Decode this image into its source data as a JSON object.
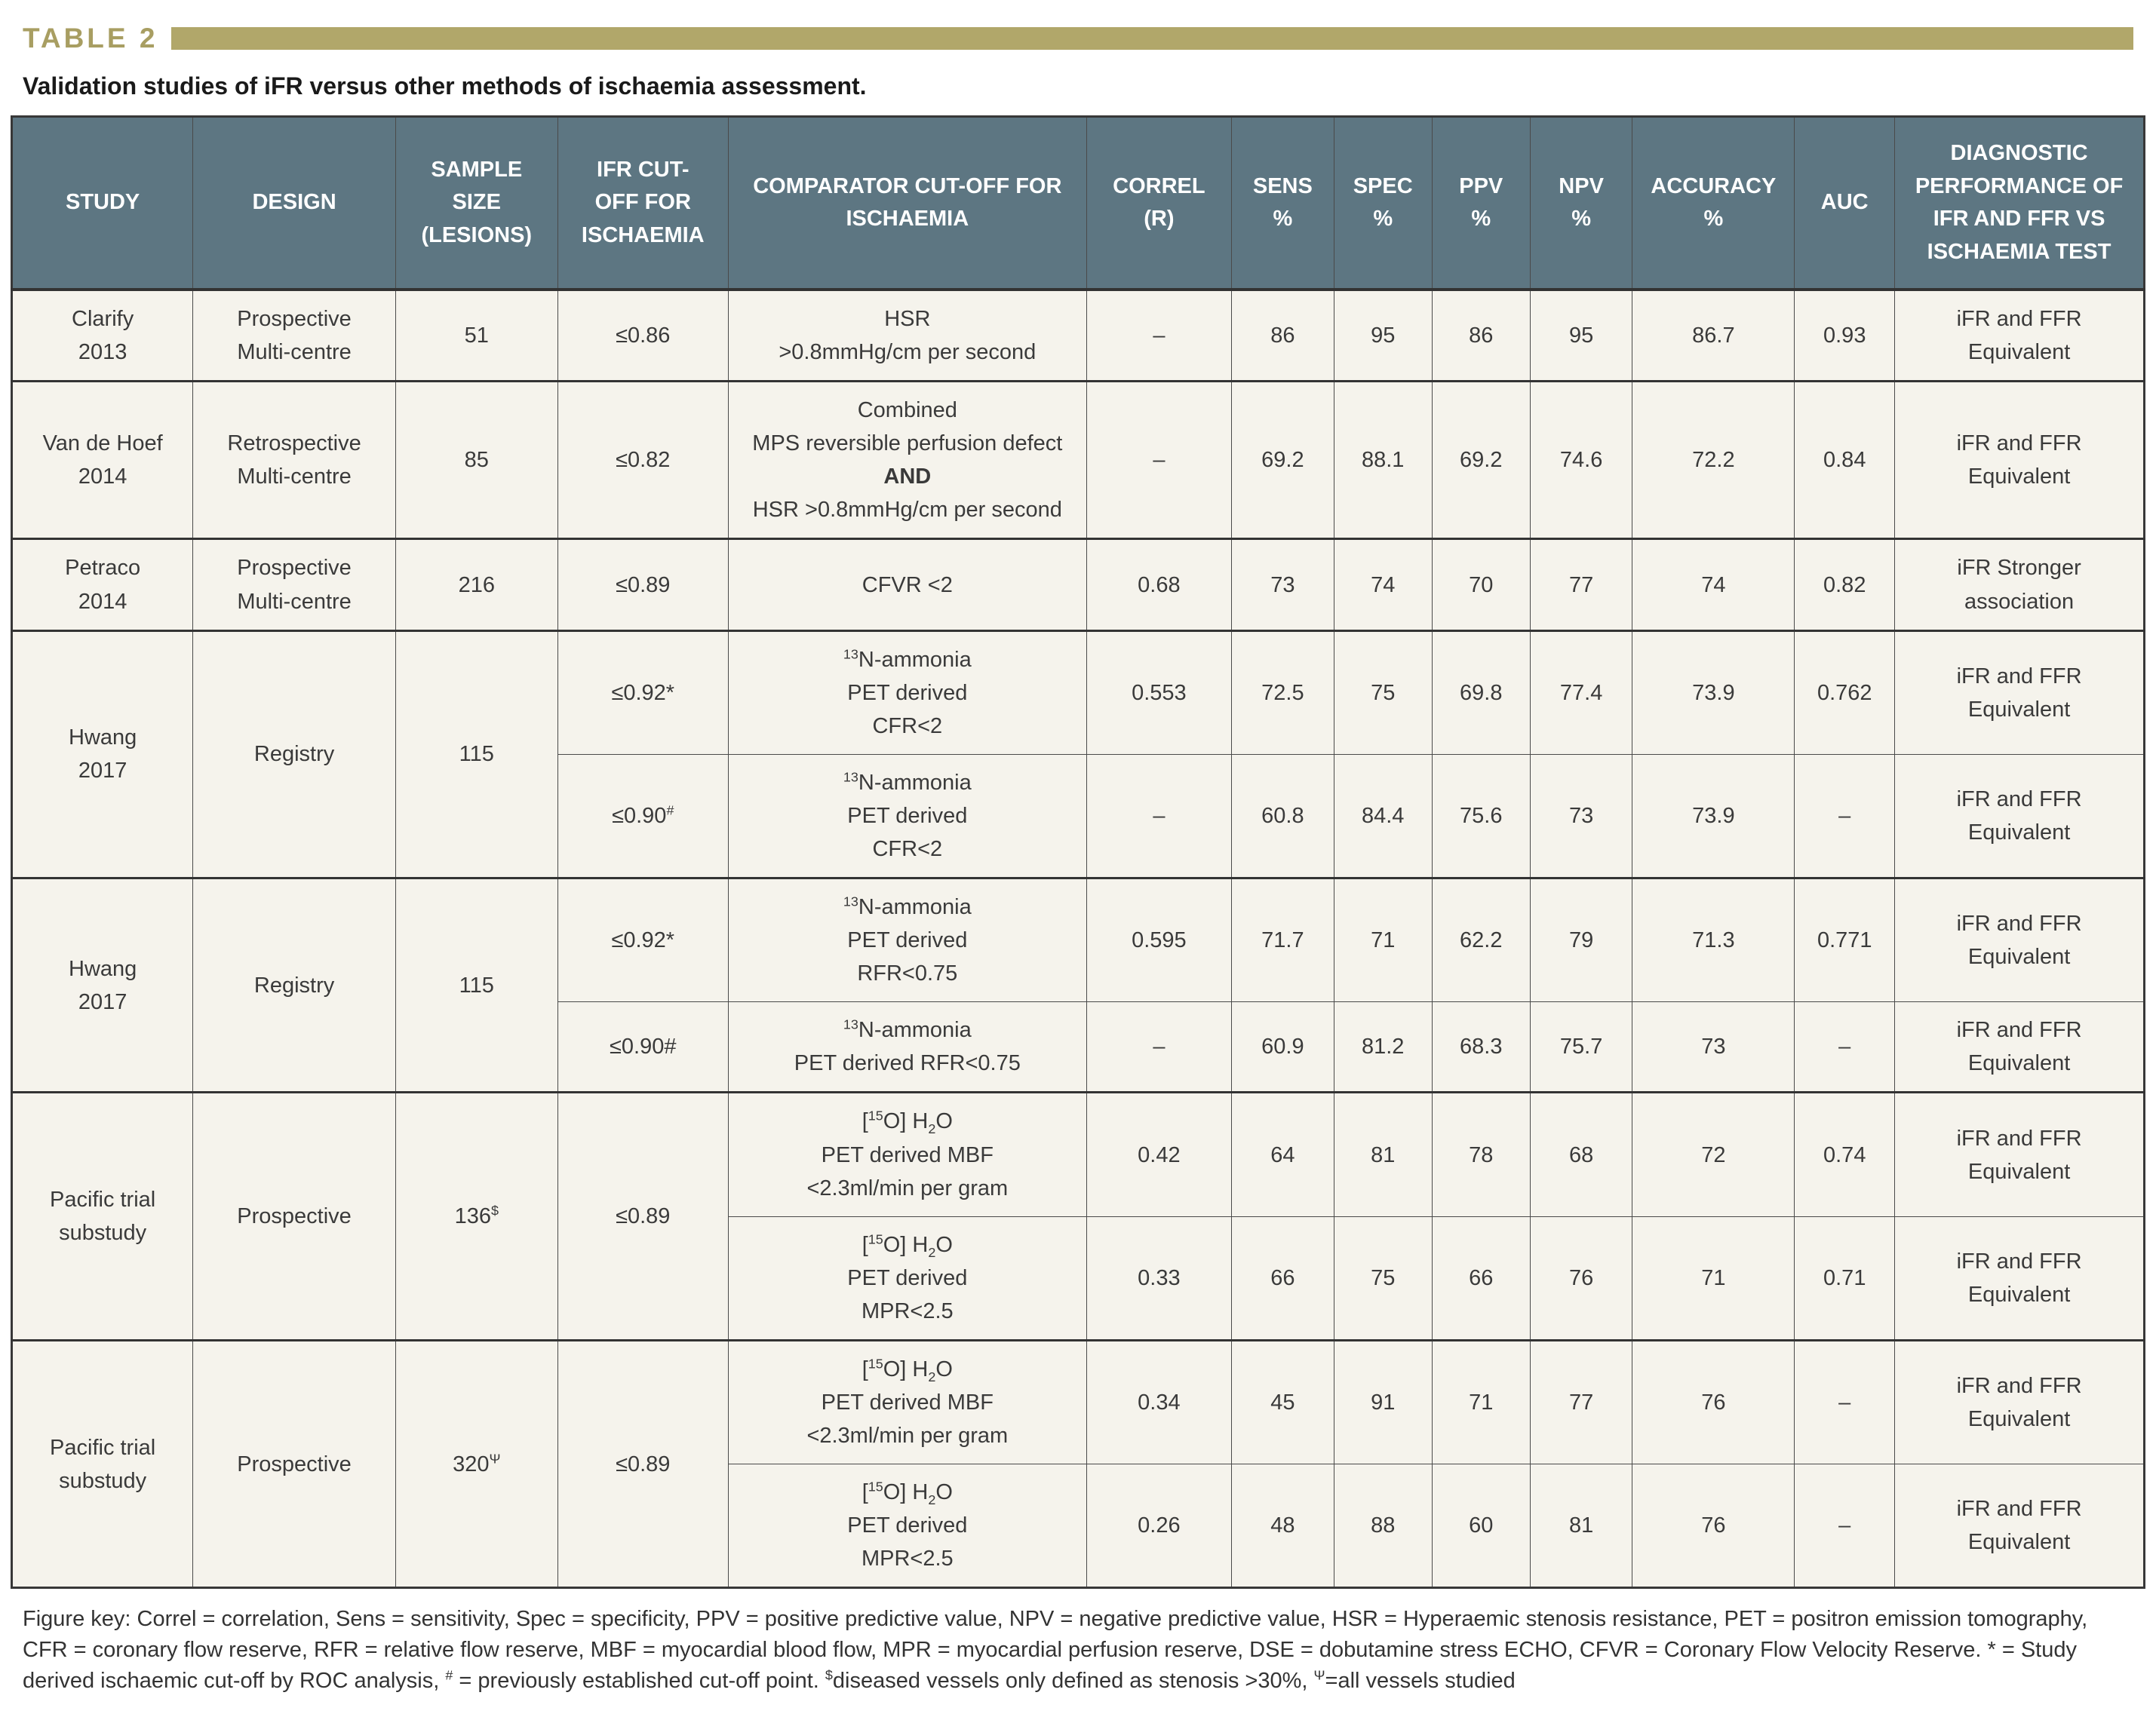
{
  "table_label": "TABLE 2",
  "title": "Validation studies of iFR versus other methods of ischaemia assessment.",
  "colors": {
    "gold_accent": "#b1a76a",
    "header_bg": "#5d7682",
    "row_bg": "#f5f3ec",
    "border": "#4a4a4a"
  },
  "table": {
    "headers": [
      [
        "STUDY"
      ],
      [
        "DESIGN"
      ],
      [
        "SAMPLE",
        "SIZE",
        "(LESIONS)"
      ],
      [
        "IFR CUT-",
        "OFF FOR",
        "ISCHAEMIA"
      ],
      [
        "COMPARATOR CUT-OFF FOR",
        "ISCHAEMIA"
      ],
      [
        "CORREL",
        "(R)"
      ],
      [
        "SENS",
        "%"
      ],
      [
        "SPEC",
        "%"
      ],
      [
        "PPV",
        "%"
      ],
      [
        "NPV",
        "%"
      ],
      [
        "ACCURACY",
        "%"
      ],
      [
        "AUC"
      ],
      [
        "DIAGNOSTIC",
        "PERFORMANCE OF",
        "IFR AND FFR VS",
        "ISCHAEMIA TEST"
      ]
    ],
    "bands": [
      {
        "rows": [
          [
            {
              "lines": [
                "Clarify",
                "2013"
              ]
            },
            {
              "lines": [
                "Prospective",
                "Multi-centre"
              ]
            },
            {
              "lines": [
                "51"
              ]
            },
            {
              "lines": [
                "≤0.86"
              ]
            },
            {
              "lines": [
                "HSR",
                ">0.8mmHg/cm per second"
              ]
            },
            {
              "lines": [
                "–"
              ]
            },
            {
              "lines": [
                "86"
              ]
            },
            {
              "lines": [
                "95"
              ]
            },
            {
              "lines": [
                "86"
              ]
            },
            {
              "lines": [
                "95"
              ]
            },
            {
              "lines": [
                "86.7"
              ]
            },
            {
              "lines": [
                "0.93"
              ]
            },
            {
              "lines": [
                "iFR and FFR",
                "Equivalent"
              ]
            }
          ]
        ]
      },
      {
        "rows": [
          [
            {
              "lines": [
                "Van de Hoef",
                "2014"
              ]
            },
            {
              "lines": [
                "Retrospective",
                "Multi-centre"
              ]
            },
            {
              "lines": [
                "85"
              ]
            },
            {
              "lines": [
                "≤0.82"
              ]
            },
            {
              "lines": [
                "Combined",
                "MPS reversible perfusion defect",
                "**AND**",
                "HSR >0.8mmHg/cm per second"
              ]
            },
            {
              "lines": [
                "–"
              ]
            },
            {
              "lines": [
                "69.2"
              ]
            },
            {
              "lines": [
                "88.1"
              ]
            },
            {
              "lines": [
                "69.2"
              ]
            },
            {
              "lines": [
                "74.6"
              ]
            },
            {
              "lines": [
                "72.2"
              ]
            },
            {
              "lines": [
                "0.84"
              ]
            },
            {
              "lines": [
                "iFR and FFR",
                "Equivalent"
              ]
            }
          ]
        ]
      },
      {
        "rows": [
          [
            {
              "lines": [
                "Petraco",
                "2014"
              ]
            },
            {
              "lines": [
                "Prospective",
                "Multi-centre"
              ]
            },
            {
              "lines": [
                "216"
              ]
            },
            {
              "lines": [
                "≤0.89"
              ]
            },
            {
              "lines": [
                "CFVR <2"
              ]
            },
            {
              "lines": [
                "0.68"
              ]
            },
            {
              "lines": [
                "73"
              ]
            },
            {
              "lines": [
                "74"
              ]
            },
            {
              "lines": [
                "70"
              ]
            },
            {
              "lines": [
                "77"
              ]
            },
            {
              "lines": [
                "74"
              ]
            },
            {
              "lines": [
                "0.82"
              ]
            },
            {
              "lines": [
                "iFR Stronger",
                "association"
              ]
            }
          ]
        ]
      },
      {
        "rows": [
          [
            {
              "lines": [
                "Hwang",
                "2017"
              ],
              "span": 2
            },
            {
              "lines": [
                "Registry"
              ],
              "span": 2
            },
            {
              "lines": [
                "115"
              ],
              "span": 2
            },
            {
              "lines": [
                "≤0.92*"
              ]
            },
            {
              "lines": [
                "^{13}N-ammonia",
                "PET derived",
                "CFR<2"
              ]
            },
            {
              "lines": [
                "0.553"
              ]
            },
            {
              "lines": [
                "72.5"
              ]
            },
            {
              "lines": [
                "75"
              ]
            },
            {
              "lines": [
                "69.8"
              ]
            },
            {
              "lines": [
                "77.4"
              ]
            },
            {
              "lines": [
                "73.9"
              ]
            },
            {
              "lines": [
                "0.762"
              ]
            },
            {
              "lines": [
                "iFR and FFR",
                "Equivalent"
              ]
            }
          ],
          [
            {
              "lines": [
                "≤0.90^{#}"
              ]
            },
            {
              "lines": [
                "^{13}N-ammonia",
                "PET derived",
                "CFR<2"
              ]
            },
            {
              "lines": [
                "–"
              ]
            },
            {
              "lines": [
                "60.8"
              ]
            },
            {
              "lines": [
                "84.4"
              ]
            },
            {
              "lines": [
                "75.6"
              ]
            },
            {
              "lines": [
                "73"
              ]
            },
            {
              "lines": [
                "73.9"
              ]
            },
            {
              "lines": [
                "–"
              ]
            },
            {
              "lines": [
                "iFR and FFR",
                "Equivalent"
              ]
            }
          ]
        ]
      },
      {
        "rows": [
          [
            {
              "lines": [
                "Hwang",
                "2017"
              ],
              "span": 2
            },
            {
              "lines": [
                "Registry"
              ],
              "span": 2
            },
            {
              "lines": [
                "115"
              ],
              "span": 2
            },
            {
              "lines": [
                "≤0.92*"
              ]
            },
            {
              "lines": [
                "^{13}N-ammonia",
                "PET derived",
                "RFR<0.75"
              ]
            },
            {
              "lines": [
                "0.595"
              ]
            },
            {
              "lines": [
                "71.7"
              ]
            },
            {
              "lines": [
                "71"
              ]
            },
            {
              "lines": [
                "62.2"
              ]
            },
            {
              "lines": [
                "79"
              ]
            },
            {
              "lines": [
                "71.3"
              ]
            },
            {
              "lines": [
                "0.771"
              ]
            },
            {
              "lines": [
                "iFR and FFR",
                "Equivalent"
              ]
            }
          ],
          [
            {
              "lines": [
                "≤0.90#"
              ]
            },
            {
              "lines": [
                "^{13}N-ammonia",
                "PET derived RFR<0.75"
              ]
            },
            {
              "lines": [
                "–"
              ]
            },
            {
              "lines": [
                "60.9"
              ]
            },
            {
              "lines": [
                "81.2"
              ]
            },
            {
              "lines": [
                "68.3"
              ]
            },
            {
              "lines": [
                "75.7"
              ]
            },
            {
              "lines": [
                "73"
              ]
            },
            {
              "lines": [
                "–"
              ]
            },
            {
              "lines": [
                "iFR and FFR",
                "Equivalent"
              ]
            }
          ]
        ]
      },
      {
        "rows": [
          [
            {
              "lines": [
                "Pacific trial",
                "substudy"
              ],
              "span": 2
            },
            {
              "lines": [
                "Prospective"
              ],
              "span": 2
            },
            {
              "lines": [
                "136^{$}"
              ],
              "span": 2
            },
            {
              "lines": [
                "≤0.89"
              ],
              "span": 2
            },
            {
              "lines": [
                "[^{15}O] H_{2}O",
                "PET derived MBF",
                "<2.3ml/min per gram"
              ]
            },
            {
              "lines": [
                "0.42"
              ]
            },
            {
              "lines": [
                "64"
              ]
            },
            {
              "lines": [
                "81"
              ]
            },
            {
              "lines": [
                "78"
              ]
            },
            {
              "lines": [
                "68"
              ]
            },
            {
              "lines": [
                "72"
              ]
            },
            {
              "lines": [
                "0.74"
              ]
            },
            {
              "lines": [
                "iFR and FFR",
                "Equivalent"
              ]
            }
          ],
          [
            {
              "lines": [
                "[^{15}O] H_{2}O",
                "PET derived",
                "MPR<2.5"
              ]
            },
            {
              "lines": [
                "0.33"
              ]
            },
            {
              "lines": [
                "66"
              ]
            },
            {
              "lines": [
                "75"
              ]
            },
            {
              "lines": [
                "66"
              ]
            },
            {
              "lines": [
                "76"
              ]
            },
            {
              "lines": [
                "71"
              ]
            },
            {
              "lines": [
                "0.71"
              ]
            },
            {
              "lines": [
                "iFR and FFR",
                "Equivalent"
              ]
            }
          ]
        ]
      },
      {
        "rows": [
          [
            {
              "lines": [
                "Pacific trial",
                "substudy"
              ],
              "span": 2
            },
            {
              "lines": [
                "Prospective"
              ],
              "span": 2
            },
            {
              "lines": [
                "320^{Ψ}"
              ],
              "span": 2
            },
            {
              "lines": [
                "≤0.89"
              ],
              "span": 2
            },
            {
              "lines": [
                "[^{15}O] H_{2}O",
                "PET derived MBF",
                "<2.3ml/min per gram"
              ]
            },
            {
              "lines": [
                "0.34"
              ]
            },
            {
              "lines": [
                "45"
              ]
            },
            {
              "lines": [
                "91"
              ]
            },
            {
              "lines": [
                "71"
              ]
            },
            {
              "lines": [
                "77"
              ]
            },
            {
              "lines": [
                "76"
              ]
            },
            {
              "lines": [
                "–"
              ]
            },
            {
              "lines": [
                "iFR and FFR",
                "Equivalent"
              ]
            }
          ],
          [
            {
              "lines": [
                "[^{15}O] H_{2}O",
                "PET derived",
                "MPR<2.5"
              ]
            },
            {
              "lines": [
                "0.26"
              ]
            },
            {
              "lines": [
                "48"
              ]
            },
            {
              "lines": [
                "88"
              ]
            },
            {
              "lines": [
                "60"
              ]
            },
            {
              "lines": [
                "81"
              ]
            },
            {
              "lines": [
                "76"
              ]
            },
            {
              "lines": [
                "–"
              ]
            },
            {
              "lines": [
                "iFR and FFR",
                "Equivalent"
              ]
            }
          ]
        ]
      }
    ]
  },
  "figure_key": "Figure key: Correl = correlation, Sens = sensitivity, Spec = specificity, PPV = positive predictive value, NPV = negative predictive value, HSR = Hyperaemic stenosis resistance, PET = positron emission tomography, CFR = coronary flow reserve, RFR = relative flow reserve, MBF = myocardial blood flow, MPR = myocardial perfusion reserve, DSE = dobutamine stress ECHO, CFVR = Coronary Flow Velocity Reserve. * = Study derived ischaemic cut-off by ROC analysis, ^{#} = previously established cut-off point. ^{$}diseased vessels only defined as stenosis >30%, ^{Ψ}=all vessels studied"
}
